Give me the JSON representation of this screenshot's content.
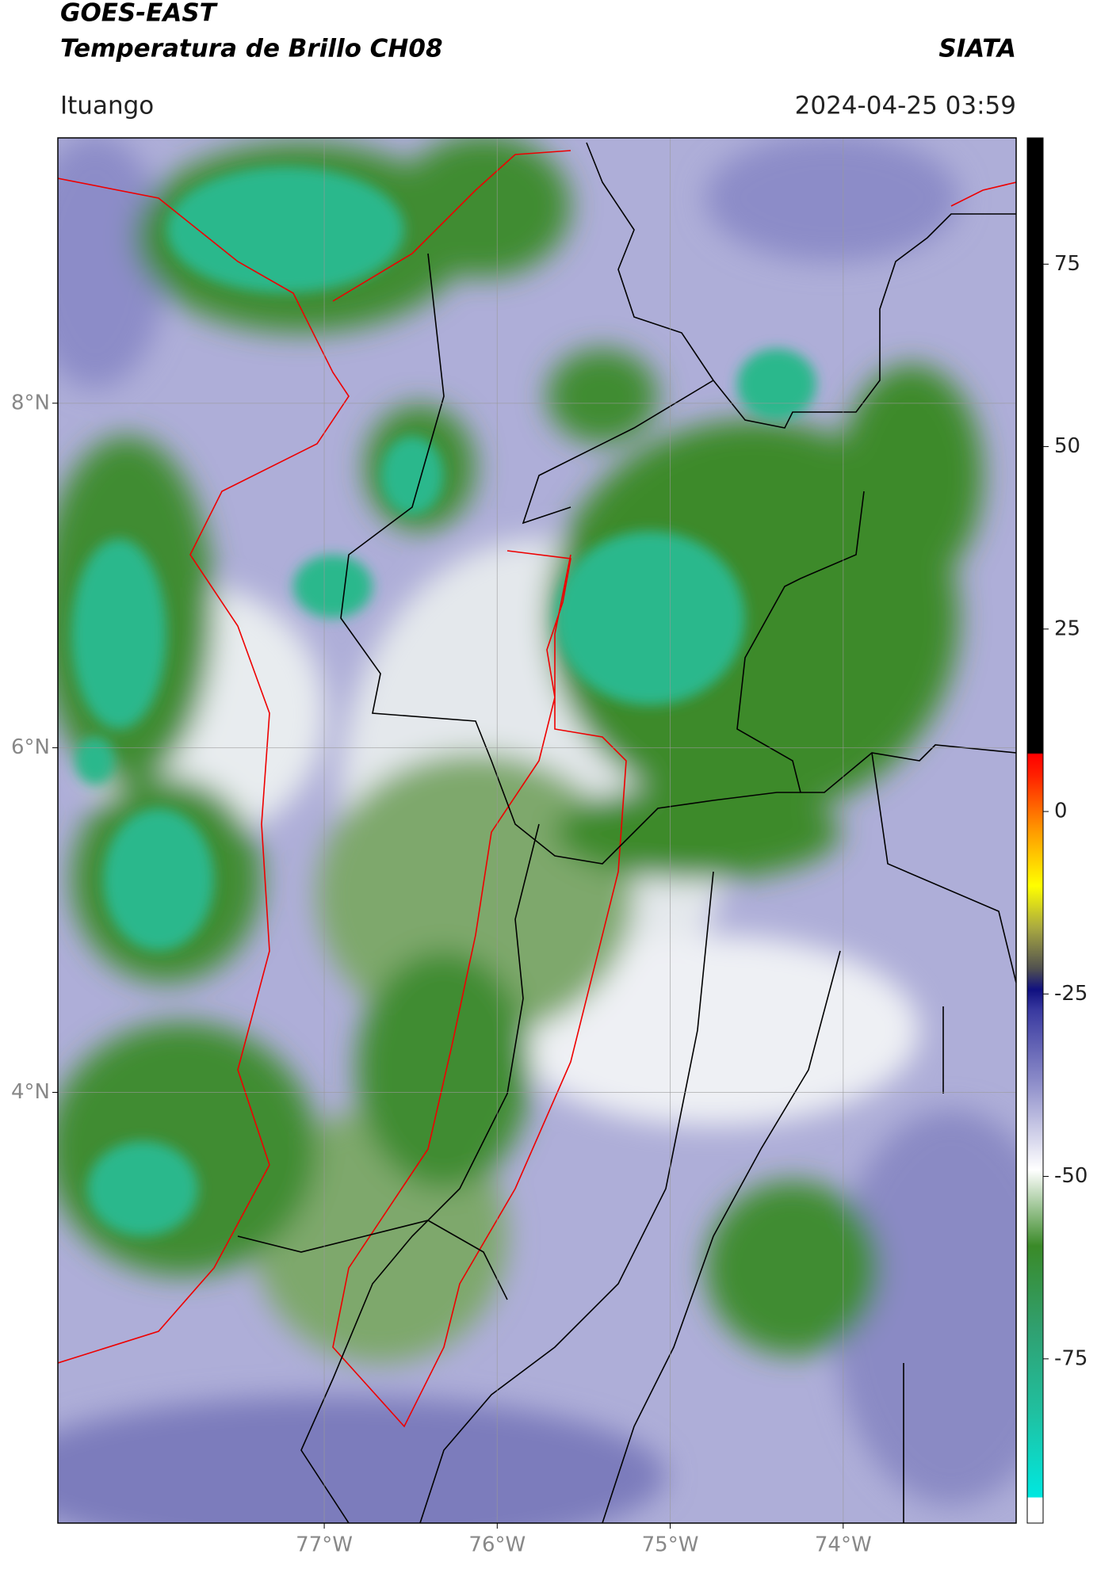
{
  "header": {
    "title": "GOES-EAST",
    "subtitle": "Temperatura de Brillo CH08",
    "source": "SIATA",
    "location": "Ituango",
    "datetime": "2024-04-25 03:59"
  },
  "map": {
    "lonlim": [
      -78.54,
      -73.0
    ],
    "latlim": [
      1.5,
      9.54
    ],
    "lonticks": [
      {
        "value": -77,
        "label": "77°W"
      },
      {
        "value": -76,
        "label": "76°W"
      },
      {
        "value": -75,
        "label": "75°W"
      },
      {
        "value": -74,
        "label": "74°W"
      }
    ],
    "latticks": [
      {
        "value": 8,
        "label": "8°N"
      },
      {
        "value": 6,
        "label": "6°N"
      },
      {
        "value": 4,
        "label": "4°N"
      }
    ]
  },
  "colorbar": {
    "lim": [
      -97.5,
      92.3
    ],
    "ticks": [
      75,
      50,
      25,
      0,
      -25,
      -50,
      -75
    ]
  }
}
